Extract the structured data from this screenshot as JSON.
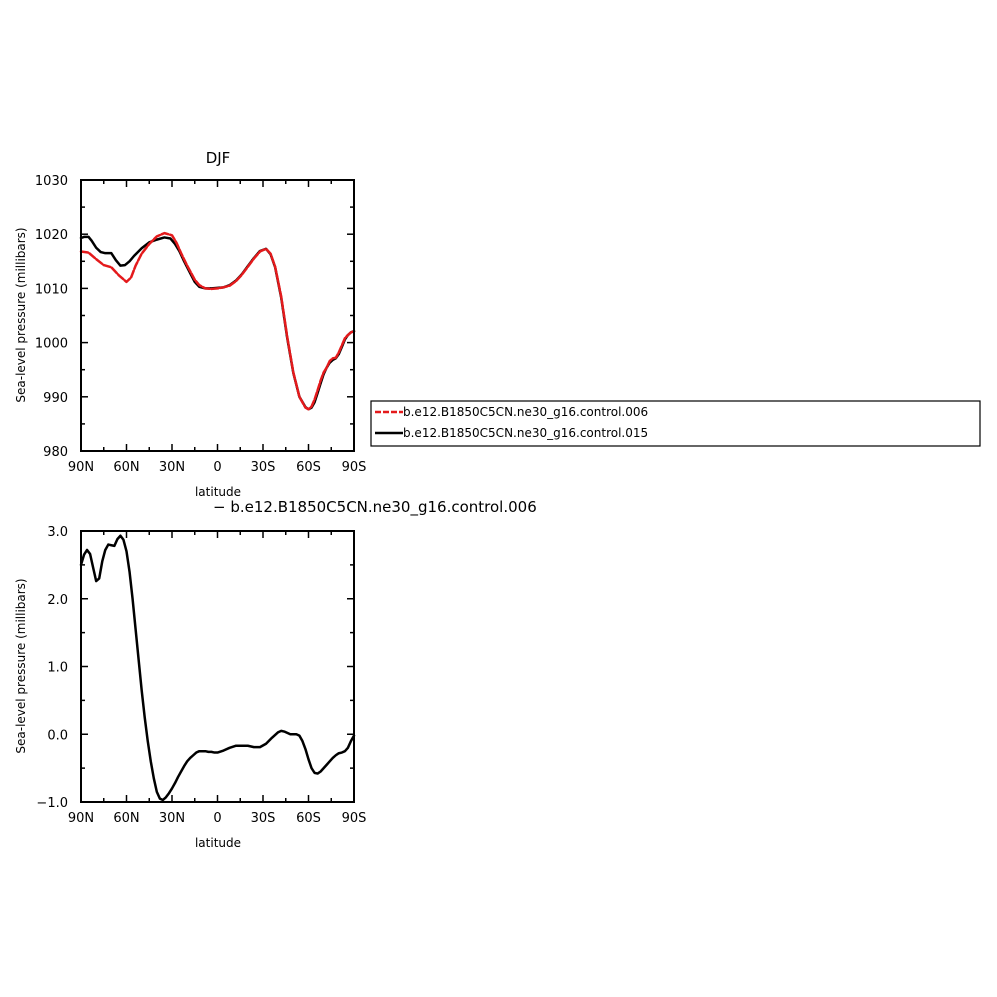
{
  "chart_data": [
    {
      "type": "line",
      "title": "DJF",
      "xlabel": "latitude",
      "ylabel": "Sea-level pressure (millibars)",
      "xlim": [
        90,
        -90
      ],
      "ylim": [
        980,
        1030
      ],
      "x_ticks": [
        {
          "value": 90,
          "label": "90N"
        },
        {
          "value": 60,
          "label": "60N"
        },
        {
          "value": 30,
          "label": "30N"
        },
        {
          "value": 0,
          "label": "0"
        },
        {
          "value": -30,
          "label": "30S"
        },
        {
          "value": -60,
          "label": "60S"
        },
        {
          "value": -90,
          "label": "90S"
        }
      ],
      "y_ticks": [
        {
          "value": 1030,
          "label": "1030"
        },
        {
          "value": 1020,
          "label": "1020"
        },
        {
          "value": 1010,
          "label": "1010"
        },
        {
          "value": 1000,
          "label": "1000"
        },
        {
          "value": 990,
          "label": "990"
        },
        {
          "value": 980,
          "label": "980"
        }
      ],
      "legend_position": "right",
      "series": [
        {
          "name": "b.e12.B1850C5CN.ne30_g16.control.006",
          "color": "#e41a1c",
          "dash": "dashed",
          "x": [
            90,
            85,
            80,
            75,
            70,
            65,
            60,
            57,
            54,
            50,
            45,
            40,
            35,
            30,
            27,
            24,
            20,
            15,
            12,
            8,
            4,
            0,
            -4,
            -8,
            -12,
            -16,
            -20,
            -24,
            -28,
            -32,
            -35,
            -38,
            -42,
            -46,
            -50,
            -54,
            -58,
            -60,
            -62,
            -64,
            -66,
            -68,
            -70,
            -72,
            -74,
            -76,
            -78,
            -80,
            -82,
            -84,
            -86,
            -88,
            -90
          ],
          "values": [
            1016.8,
            1016.6,
            1015.4,
            1014.3,
            1013.9,
            1012.4,
            1011.2,
            1012.0,
            1014.2,
            1016.4,
            1018.2,
            1019.6,
            1020.2,
            1019.8,
            1018.4,
            1016.5,
            1014.2,
            1011.6,
            1010.6,
            1010.0,
            1009.9,
            1010.0,
            1010.2,
            1010.5,
            1011.3,
            1012.5,
            1014.0,
            1015.5,
            1016.8,
            1017.3,
            1016.4,
            1014.0,
            1008.5,
            1001.0,
            994.5,
            990.0,
            988.0,
            987.7,
            988.2,
            989.5,
            991.2,
            993.0,
            994.5,
            995.4,
            996.6,
            997.1,
            997.2,
            998.2,
            999.5,
            1000.8,
            1001.4,
            1001.9,
            1002.1
          ]
        },
        {
          "name": "b.e12.B1850C5CN.ne30_g16.control.015",
          "color": "#000000",
          "dash": "solid",
          "x": [
            90,
            88,
            85,
            83,
            80,
            77,
            74,
            70,
            67,
            64,
            61,
            58,
            55,
            50,
            45,
            40,
            35,
            31,
            28,
            25,
            22,
            18,
            15,
            12,
            8,
            4,
            0,
            -4,
            -8,
            -12,
            -16,
            -20,
            -24,
            -28,
            -32,
            -35,
            -38,
            -42,
            -46,
            -50,
            -54,
            -58,
            -60,
            -62,
            -64,
            -66,
            -68,
            -70,
            -72,
            -74,
            -76,
            -78,
            -80,
            -82,
            -84,
            -86,
            -88,
            -90
          ],
          "values": [
            1019.3,
            1019.5,
            1019.5,
            1018.8,
            1017.5,
            1016.7,
            1016.5,
            1016.5,
            1015.2,
            1014.2,
            1014.3,
            1015.0,
            1016.0,
            1017.4,
            1018.5,
            1019.0,
            1019.4,
            1019.2,
            1018.2,
            1016.8,
            1015.0,
            1012.8,
            1011.2,
            1010.3,
            1010.0,
            1010.0,
            1010.1,
            1010.2,
            1010.6,
            1011.4,
            1012.6,
            1014.1,
            1015.6,
            1016.9,
            1017.3,
            1016.3,
            1013.9,
            1008.3,
            1000.8,
            994.4,
            990.0,
            988.1,
            987.7,
            988.0,
            989.0,
            990.7,
            992.5,
            994.2,
            995.4,
            996.3,
            996.8,
            997.1,
            997.9,
            999.2,
            1000.6,
            1001.4,
            1001.9,
            1002.1
          ]
        }
      ]
    },
    {
      "type": "line",
      "title": "− b.e12.B1850C5CN.ne30_g16.control.006",
      "xlabel": "latitude",
      "ylabel": "Sea-level pressure (millibars)",
      "xlim": [
        90,
        -90
      ],
      "ylim": [
        -1.0,
        3.0
      ],
      "x_ticks": [
        {
          "value": 90,
          "label": "90N"
        },
        {
          "value": 60,
          "label": "60N"
        },
        {
          "value": 30,
          "label": "30N"
        },
        {
          "value": 0,
          "label": "0"
        },
        {
          "value": -30,
          "label": "30S"
        },
        {
          "value": -60,
          "label": "60S"
        },
        {
          "value": -90,
          "label": "90S"
        }
      ],
      "y_ticks": [
        {
          "value": 3.0,
          "label": "3.0"
        },
        {
          "value": 2.0,
          "label": "2.0"
        },
        {
          "value": 1.0,
          "label": "1.0"
        },
        {
          "value": 0.0,
          "label": "0.0"
        },
        {
          "value": -1.0,
          "label": "−1.0"
        }
      ],
      "series": [
        {
          "color": "#000000",
          "dash": "solid",
          "x": [
            90,
            88,
            86,
            84,
            82,
            80,
            78,
            76,
            74,
            72,
            70,
            68,
            66,
            64,
            62,
            60,
            58,
            56,
            54,
            52,
            50,
            48,
            46,
            44,
            42,
            40,
            38,
            36,
            34,
            32,
            30,
            28,
            26,
            24,
            22,
            20,
            18,
            16,
            14,
            12,
            10,
            8,
            6,
            4,
            2,
            0,
            -4,
            -8,
            -12,
            -16,
            -20,
            -24,
            -28,
            -32,
            -36,
            -40,
            -42,
            -44,
            -46,
            -48,
            -50,
            -52,
            -54,
            -56,
            -58,
            -60,
            -62,
            -64,
            -66,
            -68,
            -70,
            -72,
            -74,
            -76,
            -78,
            -80,
            -82,
            -84,
            -86,
            -88,
            -90
          ],
          "values": [
            2.5,
            2.65,
            2.72,
            2.66,
            2.46,
            2.26,
            2.3,
            2.55,
            2.72,
            2.8,
            2.79,
            2.78,
            2.88,
            2.93,
            2.87,
            2.7,
            2.4,
            2.0,
            1.55,
            1.1,
            0.65,
            0.25,
            -0.1,
            -0.4,
            -0.65,
            -0.85,
            -0.95,
            -0.97,
            -0.93,
            -0.87,
            -0.8,
            -0.72,
            -0.63,
            -0.55,
            -0.47,
            -0.4,
            -0.35,
            -0.31,
            -0.27,
            -0.25,
            -0.25,
            -0.25,
            -0.26,
            -0.26,
            -0.27,
            -0.27,
            -0.24,
            -0.2,
            -0.17,
            -0.17,
            -0.17,
            -0.19,
            -0.19,
            -0.14,
            -0.05,
            0.03,
            0.05,
            0.04,
            0.02,
            0.0,
            0.0,
            0.0,
            -0.02,
            -0.1,
            -0.22,
            -0.37,
            -0.5,
            -0.57,
            -0.58,
            -0.55,
            -0.5,
            -0.45,
            -0.4,
            -0.35,
            -0.31,
            -0.28,
            -0.27,
            -0.25,
            -0.2,
            -0.1,
            -0.02
          ]
        }
      ]
    }
  ]
}
